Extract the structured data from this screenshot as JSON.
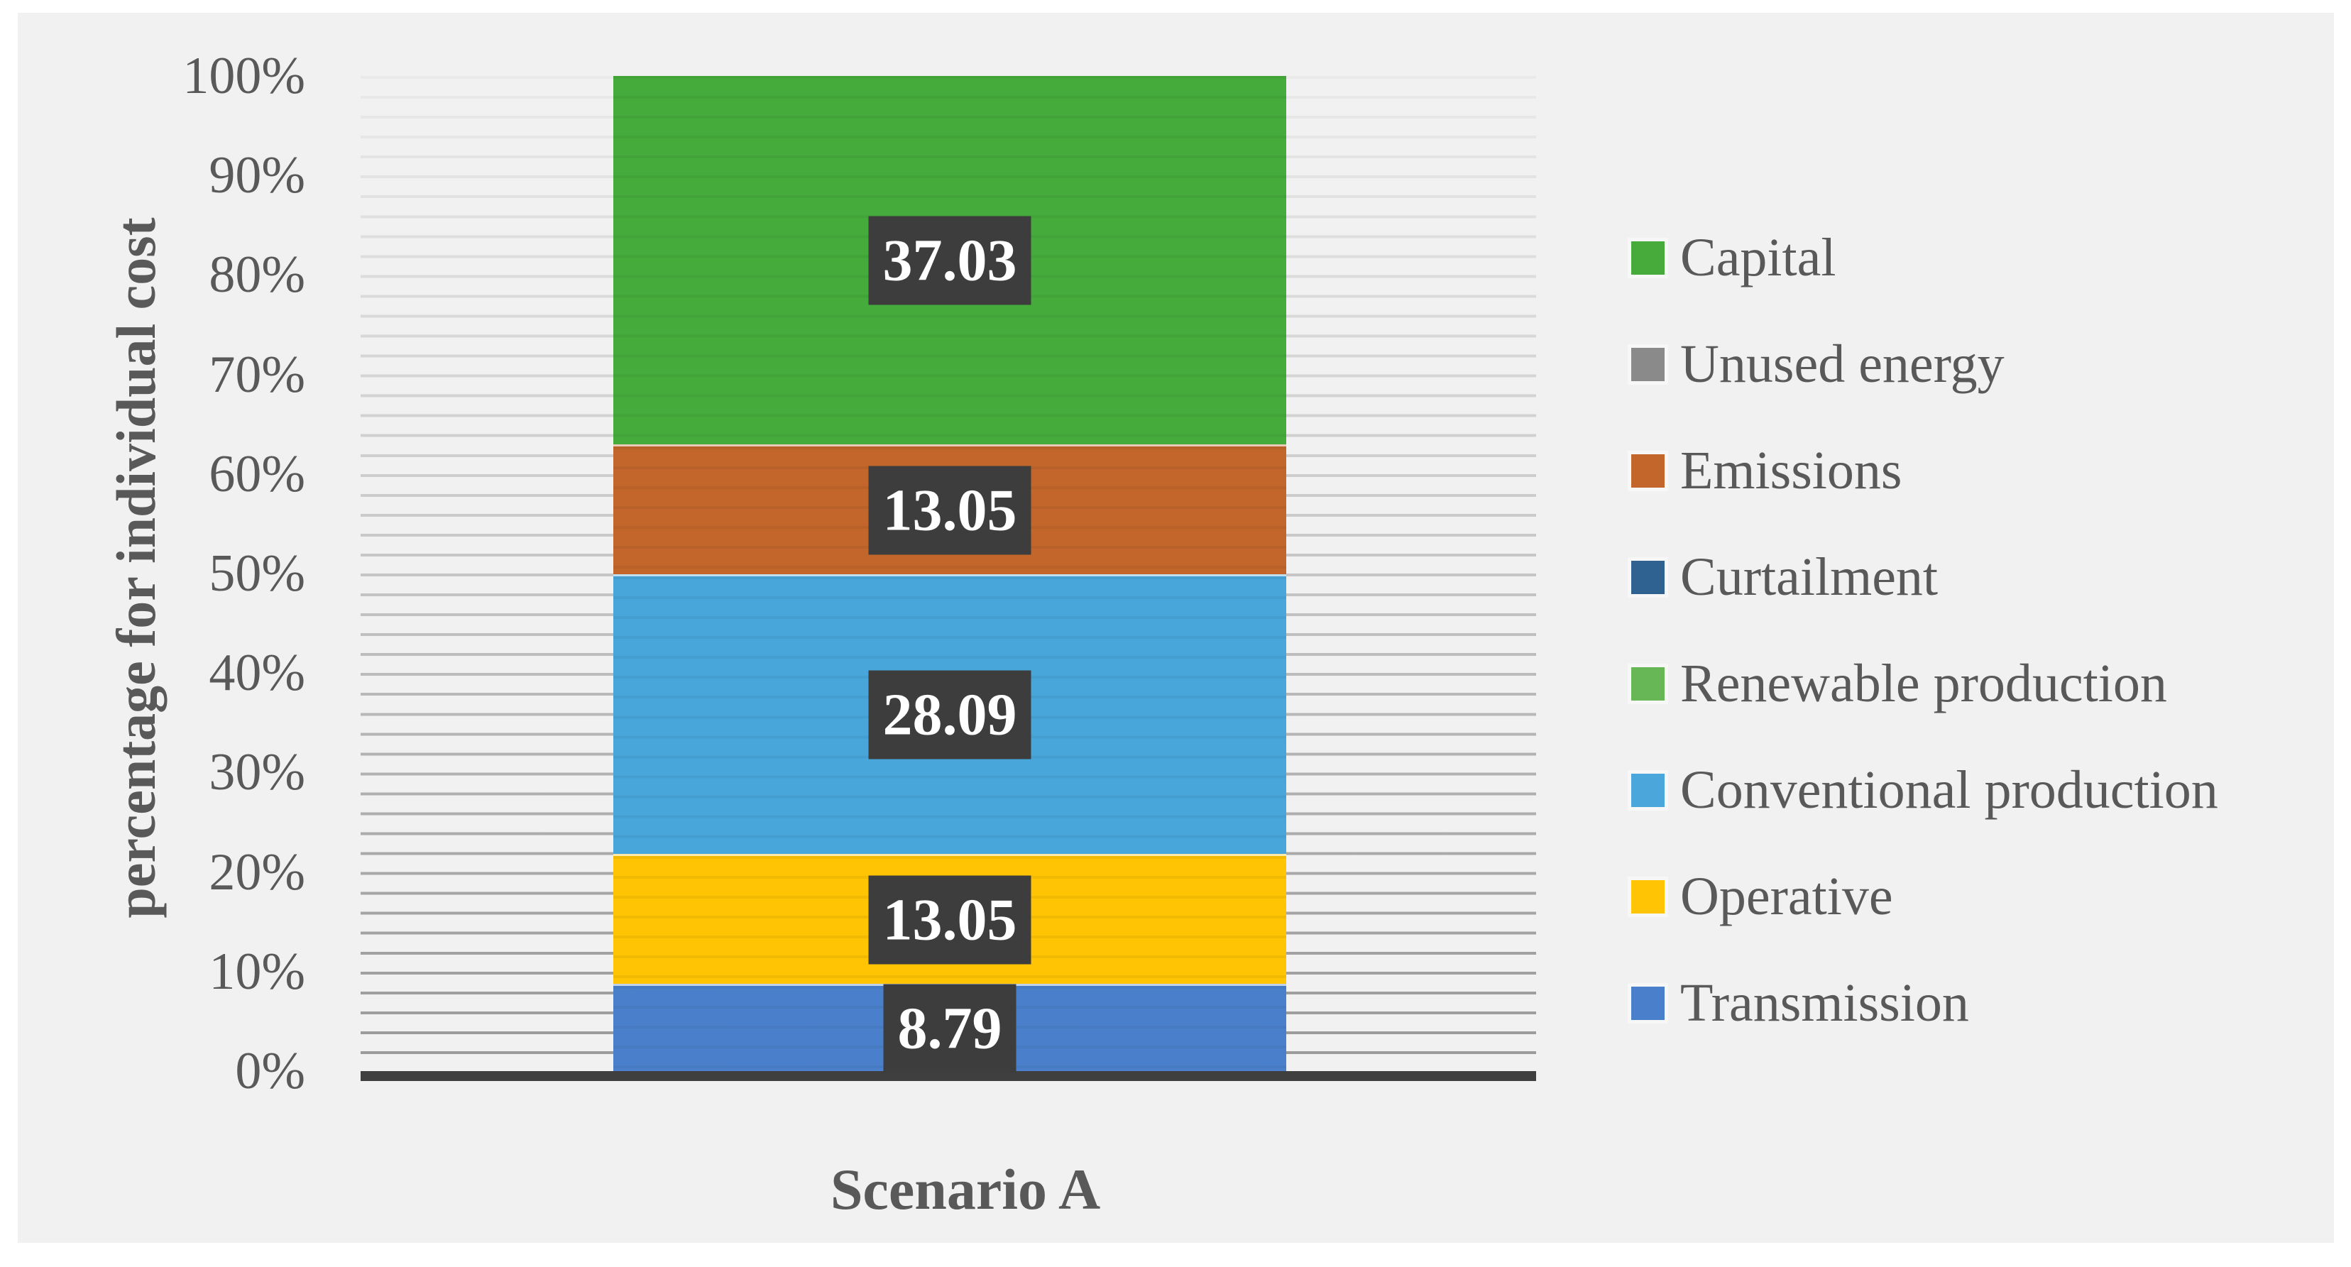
{
  "chart_data": {
    "type": "bar",
    "stacked": true,
    "categories": [
      "Scenario A"
    ],
    "xlabel": "Scenario A",
    "ylabel": "percentage for individual cost",
    "ylim": [
      0,
      100
    ],
    "yticks": [
      "100%",
      "90%",
      "80%",
      "70%",
      "60%",
      "50%",
      "40%",
      "30%",
      "20%",
      "10%",
      "0%"
    ],
    "grid": "horizontal minor gridlines every 2%",
    "legend_position": "right",
    "series": [
      {
        "name": "Transmission",
        "value": 8.79,
        "label": "8.79",
        "color": "#4A80CB"
      },
      {
        "name": "Operative",
        "value": 13.05,
        "label": "13.05",
        "color": "#FFC403"
      },
      {
        "name": "Conventional production",
        "value": 28.09,
        "label": "28.09",
        "color": "#49A6DB"
      },
      {
        "name": "Emissions",
        "value": 13.05,
        "label": "13.05",
        "color": "#C2662B"
      },
      {
        "name": "Capital",
        "value": 37.03,
        "label": "37.03",
        "color": "#45AC3B"
      }
    ],
    "legend": [
      {
        "label": "Capital",
        "color": "#47AB3C"
      },
      {
        "label": "Unused energy",
        "color": "#8A8A8A"
      },
      {
        "label": "Emissions",
        "color": "#C2662B"
      },
      {
        "label": "Curtailment",
        "color": "#2F6191"
      },
      {
        "label": "Renewable production",
        "color": "#68B757"
      },
      {
        "label": "Conventional production",
        "color": "#4BA6DC"
      },
      {
        "label": "Operative",
        "color": "#FFC403"
      },
      {
        "label": "Transmission",
        "color": "#4A80CB"
      }
    ],
    "value_label_bg": "#3D3D3D",
    "axis_line_color": "#3F3F3F",
    "text_color": "#595959",
    "panel_bg": "#F1F1F1"
  }
}
